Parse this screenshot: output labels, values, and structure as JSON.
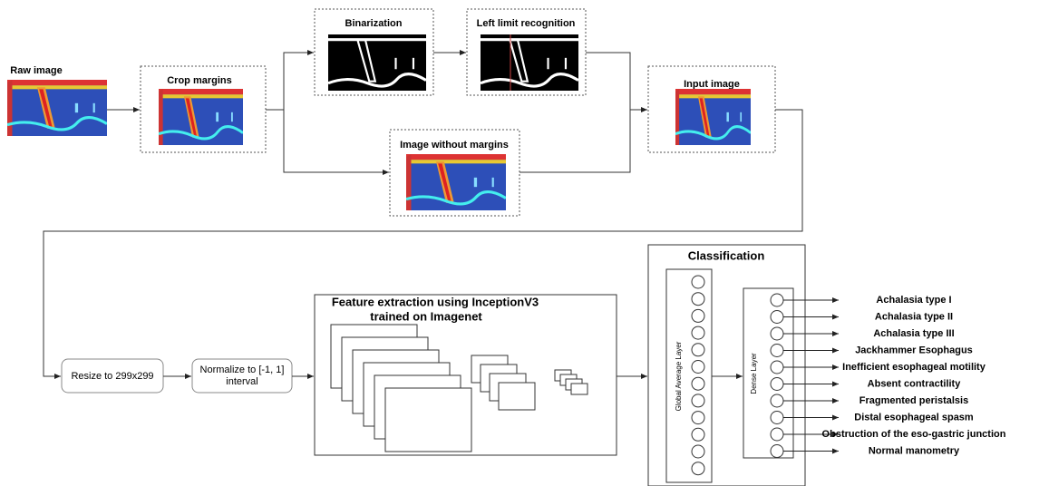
{
  "preprocessing": {
    "raw": "Raw image",
    "crop": "Crop margins",
    "binarization": "Binarization",
    "left_limit": "Left limit recognition",
    "without_margins": "Image without margins",
    "input": "Input image"
  },
  "steps": {
    "resize": "Resize to 299x299",
    "normalize": [
      "Normalize to [-1, 1]",
      "interval"
    ]
  },
  "feature_extraction": [
    "Feature extraction using InceptionV3",
    "trained on Imagenet"
  ],
  "classification": {
    "title": "Classification",
    "global_layer": "Global Average Layer",
    "dense_layer": "Dense Layer",
    "outputs": [
      "Achalasia type I",
      "Achalasia type II",
      "Achalasia type III",
      "Jackhammer Esophagus",
      "Inefficient esophageal motility",
      "Absent contractility",
      "Fragmented peristalsis",
      "Distal esophageal spasm",
      "Obstruction of the eso-gastric junction",
      "Normal manometry"
    ]
  }
}
